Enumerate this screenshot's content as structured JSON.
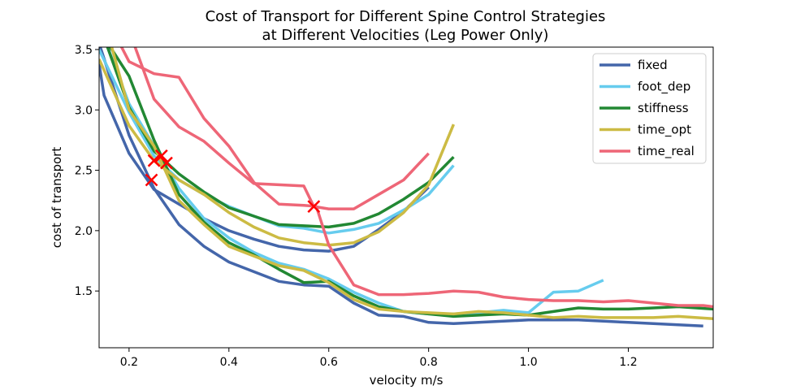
{
  "chart_data": {
    "type": "line",
    "title_line1": "Cost of Transport for Different Spine Control Strategies",
    "title_line2": "at Different Velocities (Leg Power Only)",
    "xlabel": "velocity m/s",
    "ylabel": "cost of transport",
    "xlim": [
      0.14,
      1.37
    ],
    "ylim": [
      1.03,
      3.52
    ],
    "xticks": [
      0.2,
      0.4,
      0.6,
      0.8,
      1.0,
      1.2
    ],
    "xtick_labels": [
      "0.2",
      "0.4",
      "0.6",
      "0.8",
      "1.0",
      "1.2"
    ],
    "yticks": [
      1.5,
      2.0,
      2.5,
      3.0,
      3.5
    ],
    "ytick_labels": [
      "1.5",
      "2.0",
      "2.5",
      "3.0",
      "3.5"
    ],
    "grid": false,
    "legend_position": "top-right",
    "series": [
      {
        "name": "fixed",
        "color": "#4466aa",
        "segments": [
          [
            [
              0.14,
              3.38
            ],
            [
              0.15,
              3.12
            ],
            [
              0.2,
              2.64
            ],
            [
              0.25,
              2.34
            ],
            [
              0.3,
              2.22
            ],
            [
              0.35,
              2.1
            ],
            [
              0.4,
              2.0
            ],
            [
              0.45,
              1.93
            ],
            [
              0.5,
              1.87
            ],
            [
              0.55,
              1.84
            ],
            [
              0.6,
              1.83
            ],
            [
              0.65,
              1.87
            ],
            [
              0.7,
              2.01
            ],
            [
              0.75,
              2.16
            ],
            [
              0.8,
              2.36
            ]
          ],
          [
            [
              0.14,
              3.55
            ],
            [
              0.2,
              2.79
            ],
            [
              0.25,
              2.35
            ],
            [
              0.3,
              2.05
            ],
            [
              0.35,
              1.87
            ],
            [
              0.4,
              1.74
            ],
            [
              0.45,
              1.66
            ],
            [
              0.5,
              1.58
            ],
            [
              0.55,
              1.55
            ],
            [
              0.6,
              1.54
            ],
            [
              0.65,
              1.4
            ],
            [
              0.7,
              1.3
            ],
            [
              0.75,
              1.29
            ],
            [
              0.8,
              1.24
            ],
            [
              0.85,
              1.23
            ],
            [
              0.9,
              1.24
            ],
            [
              0.95,
              1.25
            ],
            [
              1.0,
              1.26
            ],
            [
              1.05,
              1.26
            ],
            [
              1.1,
              1.26
            ],
            [
              1.15,
              1.25
            ],
            [
              1.2,
              1.24
            ],
            [
              1.25,
              1.23
            ],
            [
              1.3,
              1.22
            ],
            [
              1.35,
              1.21
            ]
          ]
        ]
      },
      {
        "name": "foot_dep",
        "color": "#66ccee",
        "segments": [
          [
            [
              0.14,
              3.5
            ],
            [
              0.2,
              2.98
            ],
            [
              0.25,
              2.62
            ],
            [
              0.3,
              2.42
            ],
            [
              0.35,
              2.3
            ],
            [
              0.4,
              2.2
            ],
            [
              0.45,
              2.12
            ],
            [
              0.5,
              2.04
            ],
            [
              0.55,
              2.02
            ],
            [
              0.6,
              1.98
            ],
            [
              0.65,
              2.01
            ],
            [
              0.7,
              2.06
            ],
            [
              0.75,
              2.17
            ],
            [
              0.8,
              2.3
            ],
            [
              0.85,
              2.54
            ]
          ],
          [
            [
              0.15,
              3.6
            ],
            [
              0.2,
              3.05
            ],
            [
              0.25,
              2.7
            ],
            [
              0.3,
              2.35
            ],
            [
              0.35,
              2.1
            ],
            [
              0.4,
              1.94
            ],
            [
              0.45,
              1.82
            ],
            [
              0.5,
              1.73
            ],
            [
              0.55,
              1.68
            ],
            [
              0.6,
              1.6
            ],
            [
              0.65,
              1.49
            ],
            [
              0.7,
              1.4
            ],
            [
              0.75,
              1.33
            ],
            [
              0.8,
              1.31
            ],
            [
              0.85,
              1.31
            ],
            [
              0.9,
              1.32
            ],
            [
              0.95,
              1.34
            ],
            [
              1.0,
              1.32
            ],
            [
              1.05,
              1.49
            ],
            [
              1.1,
              1.5
            ],
            [
              1.15,
              1.59
            ]
          ]
        ]
      },
      {
        "name": "stiffness",
        "color": "#228833",
        "segments": [
          [
            [
              0.15,
              3.6
            ],
            [
              0.2,
              3.02
            ],
            [
              0.25,
              2.66
            ],
            [
              0.3,
              2.47
            ],
            [
              0.35,
              2.32
            ],
            [
              0.4,
              2.19
            ],
            [
              0.45,
              2.12
            ],
            [
              0.5,
              2.05
            ],
            [
              0.55,
              2.04
            ],
            [
              0.6,
              2.03
            ],
            [
              0.65,
              2.06
            ],
            [
              0.7,
              2.14
            ],
            [
              0.75,
              2.26
            ],
            [
              0.8,
              2.4
            ],
            [
              0.85,
              2.61
            ]
          ],
          [
            [
              0.15,
              3.6
            ],
            [
              0.2,
              3.28
            ],
            [
              0.25,
              2.75
            ],
            [
              0.3,
              2.3
            ],
            [
              0.35,
              2.07
            ],
            [
              0.4,
              1.9
            ],
            [
              0.45,
              1.8
            ],
            [
              0.5,
              1.68
            ],
            [
              0.55,
              1.57
            ],
            [
              0.6,
              1.58
            ],
            [
              0.65,
              1.46
            ],
            [
              0.7,
              1.37
            ],
            [
              0.75,
              1.33
            ],
            [
              0.8,
              1.31
            ],
            [
              0.85,
              1.29
            ],
            [
              0.9,
              1.3
            ],
            [
              0.95,
              1.31
            ],
            [
              1.0,
              1.3
            ],
            [
              1.05,
              1.33
            ],
            [
              1.1,
              1.36
            ],
            [
              1.15,
              1.35
            ],
            [
              1.2,
              1.35
            ],
            [
              1.25,
              1.36
            ],
            [
              1.3,
              1.37
            ],
            [
              1.37,
              1.35
            ]
          ]
        ]
      },
      {
        "name": "time_opt",
        "color": "#ccbb44",
        "segments": [
          [
            [
              0.14,
              3.42
            ],
            [
              0.2,
              2.87
            ],
            [
              0.25,
              2.58
            ],
            [
              0.3,
              2.42
            ],
            [
              0.35,
              2.3
            ],
            [
              0.4,
              2.15
            ],
            [
              0.45,
              2.03
            ],
            [
              0.5,
              1.94
            ],
            [
              0.55,
              1.9
            ],
            [
              0.6,
              1.88
            ],
            [
              0.65,
              1.9
            ],
            [
              0.7,
              1.99
            ],
            [
              0.75,
              2.15
            ],
            [
              0.8,
              2.38
            ],
            [
              0.85,
              2.88
            ]
          ],
          [
            [
              0.16,
              3.6
            ],
            [
              0.2,
              3.0
            ],
            [
              0.25,
              2.7
            ],
            [
              0.3,
              2.25
            ],
            [
              0.35,
              2.05
            ],
            [
              0.4,
              1.87
            ],
            [
              0.45,
              1.79
            ],
            [
              0.5,
              1.71
            ],
            [
              0.55,
              1.67
            ],
            [
              0.6,
              1.57
            ],
            [
              0.65,
              1.43
            ],
            [
              0.7,
              1.35
            ],
            [
              0.75,
              1.33
            ],
            [
              0.8,
              1.32
            ],
            [
              0.85,
              1.31
            ],
            [
              0.9,
              1.33
            ],
            [
              0.95,
              1.32
            ],
            [
              1.0,
              1.3
            ],
            [
              1.05,
              1.28
            ],
            [
              1.1,
              1.29
            ],
            [
              1.15,
              1.28
            ],
            [
              1.2,
              1.28
            ],
            [
              1.25,
              1.28
            ],
            [
              1.3,
              1.29
            ],
            [
              1.37,
              1.27
            ]
          ]
        ]
      },
      {
        "name": "time_real",
        "color": "#ee6677",
        "segments": [
          [
            [
              0.205,
              3.6
            ],
            [
              0.25,
              3.09
            ],
            [
              0.3,
              2.86
            ],
            [
              0.35,
              2.74
            ],
            [
              0.4,
              2.56
            ],
            [
              0.45,
              2.39
            ],
            [
              0.5,
              2.38
            ],
            [
              0.55,
              2.37
            ],
            [
              0.57,
              2.2
            ],
            [
              0.6,
              2.18
            ],
            [
              0.65,
              2.18
            ],
            [
              0.7,
              2.3
            ],
            [
              0.75,
              2.42
            ],
            [
              0.8,
              2.64
            ]
          ],
          [
            [
              0.175,
              3.6
            ],
            [
              0.2,
              3.4
            ],
            [
              0.25,
              3.3
            ],
            [
              0.3,
              3.27
            ],
            [
              0.35,
              2.93
            ],
            [
              0.4,
              2.7
            ],
            [
              0.45,
              2.4
            ],
            [
              0.5,
              2.22
            ],
            [
              0.55,
              2.21
            ],
            [
              0.575,
              2.2
            ],
            [
              0.6,
              1.88
            ],
            [
              0.65,
              1.55
            ],
            [
              0.7,
              1.47
            ],
            [
              0.75,
              1.47
            ],
            [
              0.8,
              1.48
            ],
            [
              0.85,
              1.5
            ],
            [
              0.9,
              1.49
            ],
            [
              0.95,
              1.45
            ],
            [
              1.0,
              1.43
            ],
            [
              1.05,
              1.42
            ],
            [
              1.1,
              1.42
            ],
            [
              1.15,
              1.41
            ],
            [
              1.2,
              1.42
            ],
            [
              1.25,
              1.4
            ],
            [
              1.3,
              1.38
            ],
            [
              1.35,
              1.38
            ],
            [
              1.37,
              1.37
            ]
          ]
        ]
      }
    ],
    "markers": {
      "color": "#ff0000",
      "shape": "x",
      "points": [
        [
          0.245,
          2.42
        ],
        [
          0.25,
          2.58
        ],
        [
          0.265,
          2.62
        ],
        [
          0.275,
          2.56
        ],
        [
          0.57,
          2.2
        ]
      ]
    }
  }
}
